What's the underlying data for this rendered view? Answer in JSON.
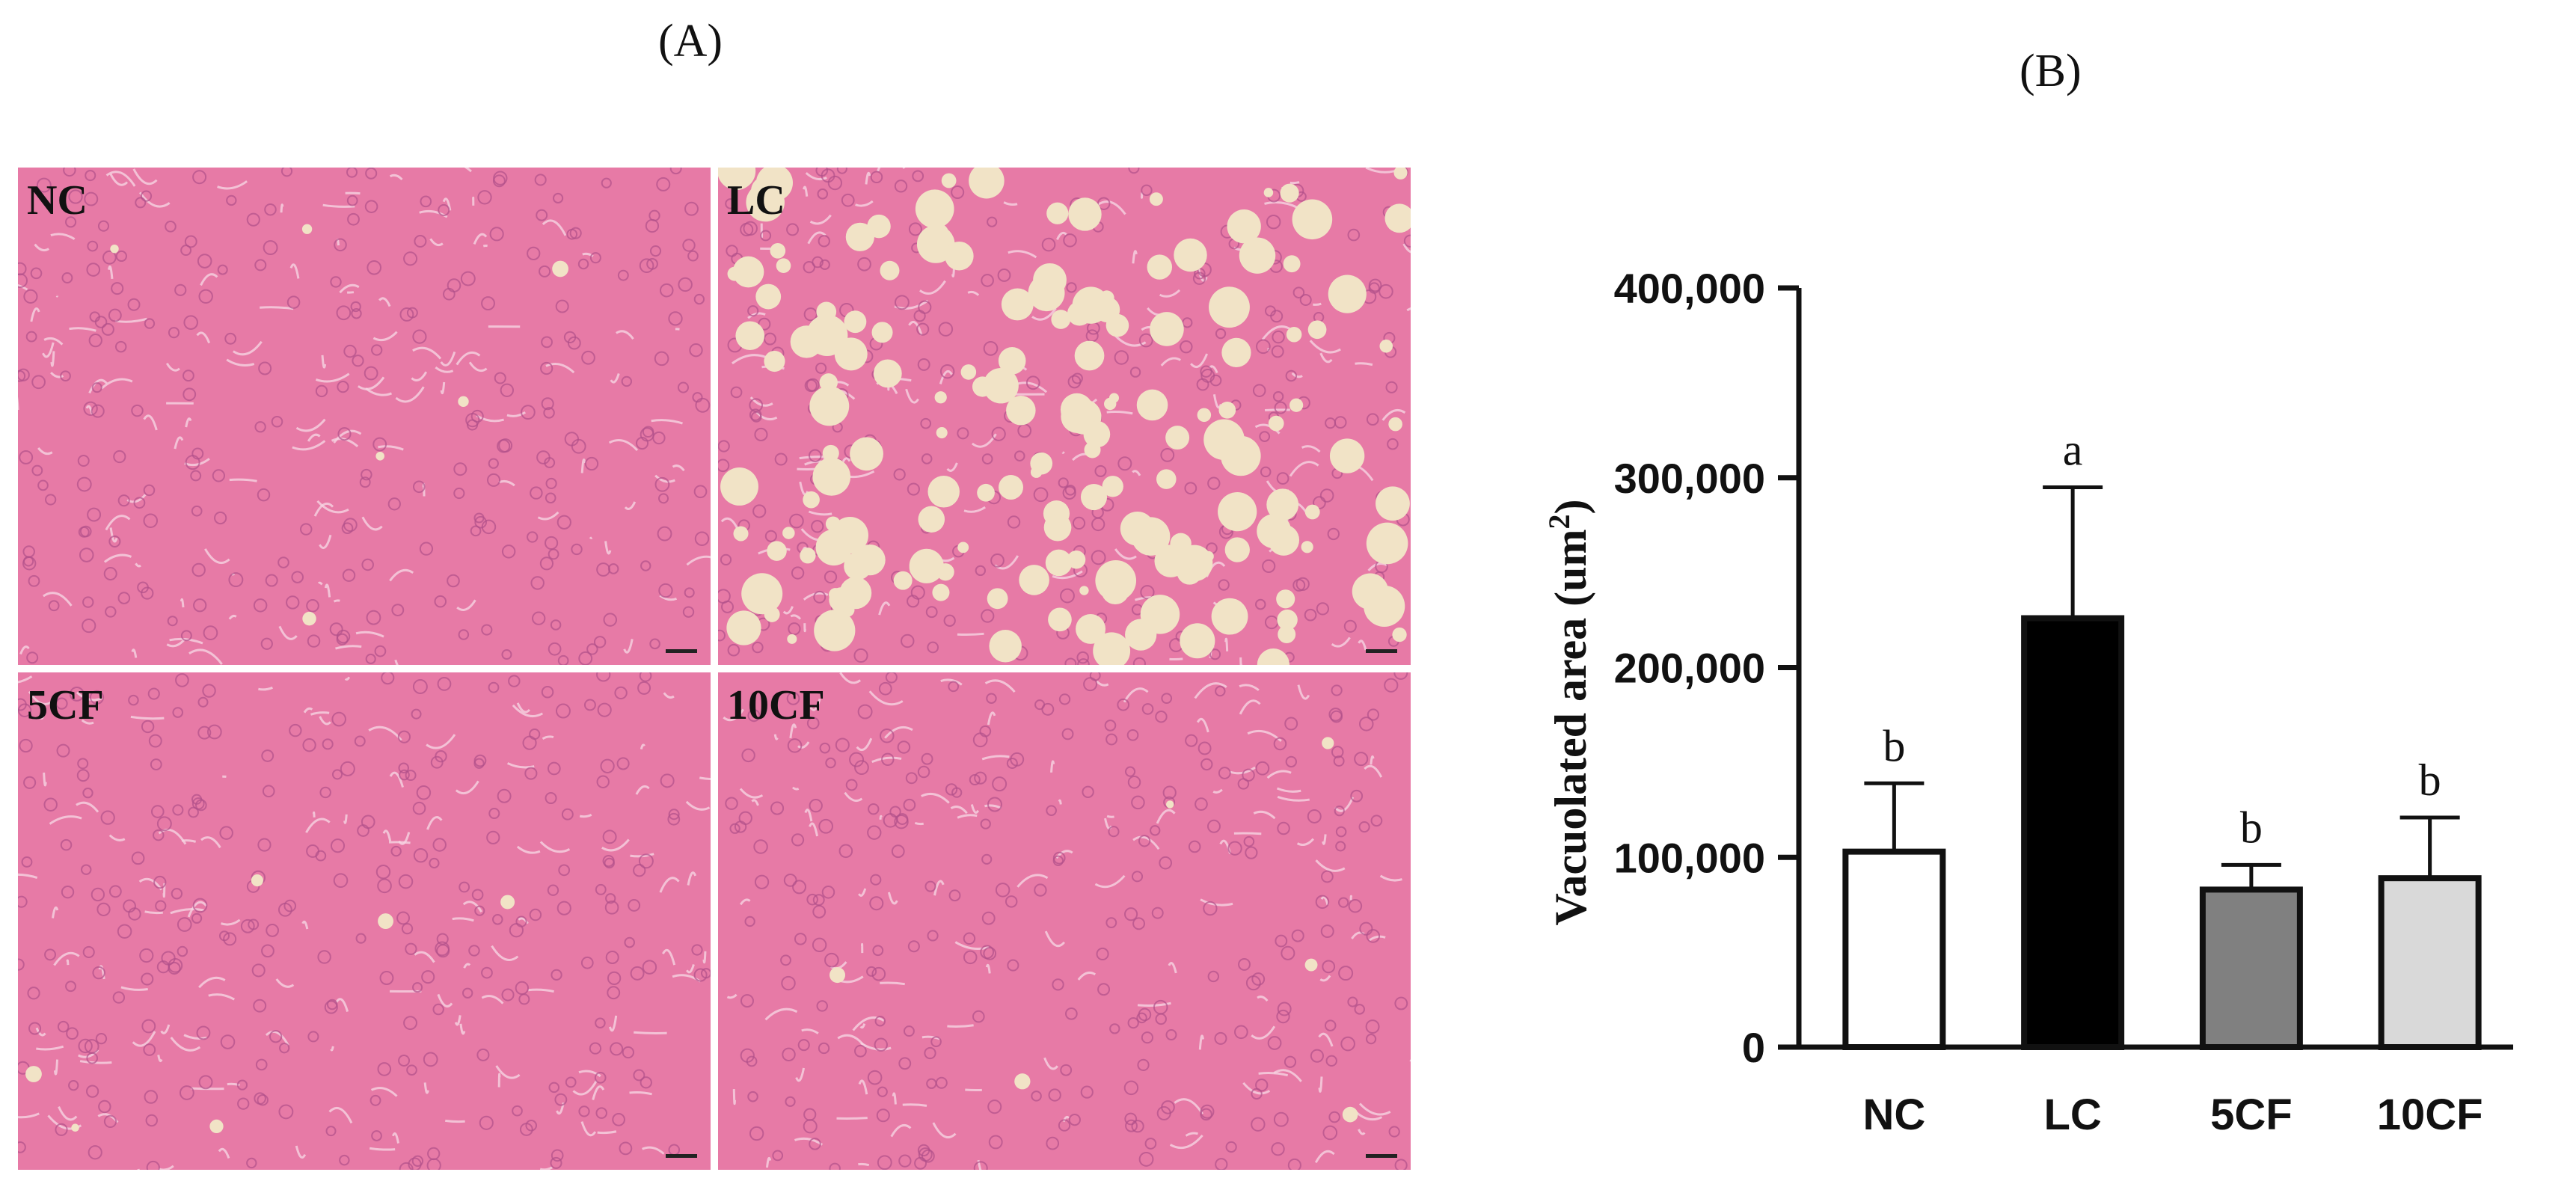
{
  "panels": {
    "a_label": "(A)",
    "b_label": "(B)"
  },
  "micrographs": [
    {
      "label": "NC",
      "vacuoles": "few"
    },
    {
      "label": "LC",
      "vacuoles": "many"
    },
    {
      "label": "5CF",
      "vacuoles": "few"
    },
    {
      "label": "10CF",
      "vacuoles": "few"
    }
  ],
  "colors": {
    "tissue": "#e77aa6",
    "vacuole": "#f1e3c6",
    "nucleus": "#b0508a"
  },
  "chart_data": {
    "type": "bar",
    "title": "",
    "categories": [
      "NC",
      "LC",
      "5CF",
      "10CF"
    ],
    "values": [
      103000,
      226000,
      83000,
      89000
    ],
    "errors": [
      36000,
      69000,
      13000,
      32000
    ],
    "significance": [
      "b",
      "a",
      "b",
      "b"
    ],
    "bar_colors": [
      "#ffffff",
      "#000000",
      "#808080",
      "#d9d9d9"
    ],
    "ylabel": "Vacuolated area (um",
    "ylabel_superscript": "2",
    "ylabel_suffix": ")",
    "ylim": [
      0,
      400000
    ],
    "yticks": [
      0,
      100000,
      200000,
      300000,
      400000
    ],
    "ytick_labels": [
      "0",
      "100,000",
      "200,000",
      "300,000",
      "400,000"
    ],
    "grid": false
  }
}
